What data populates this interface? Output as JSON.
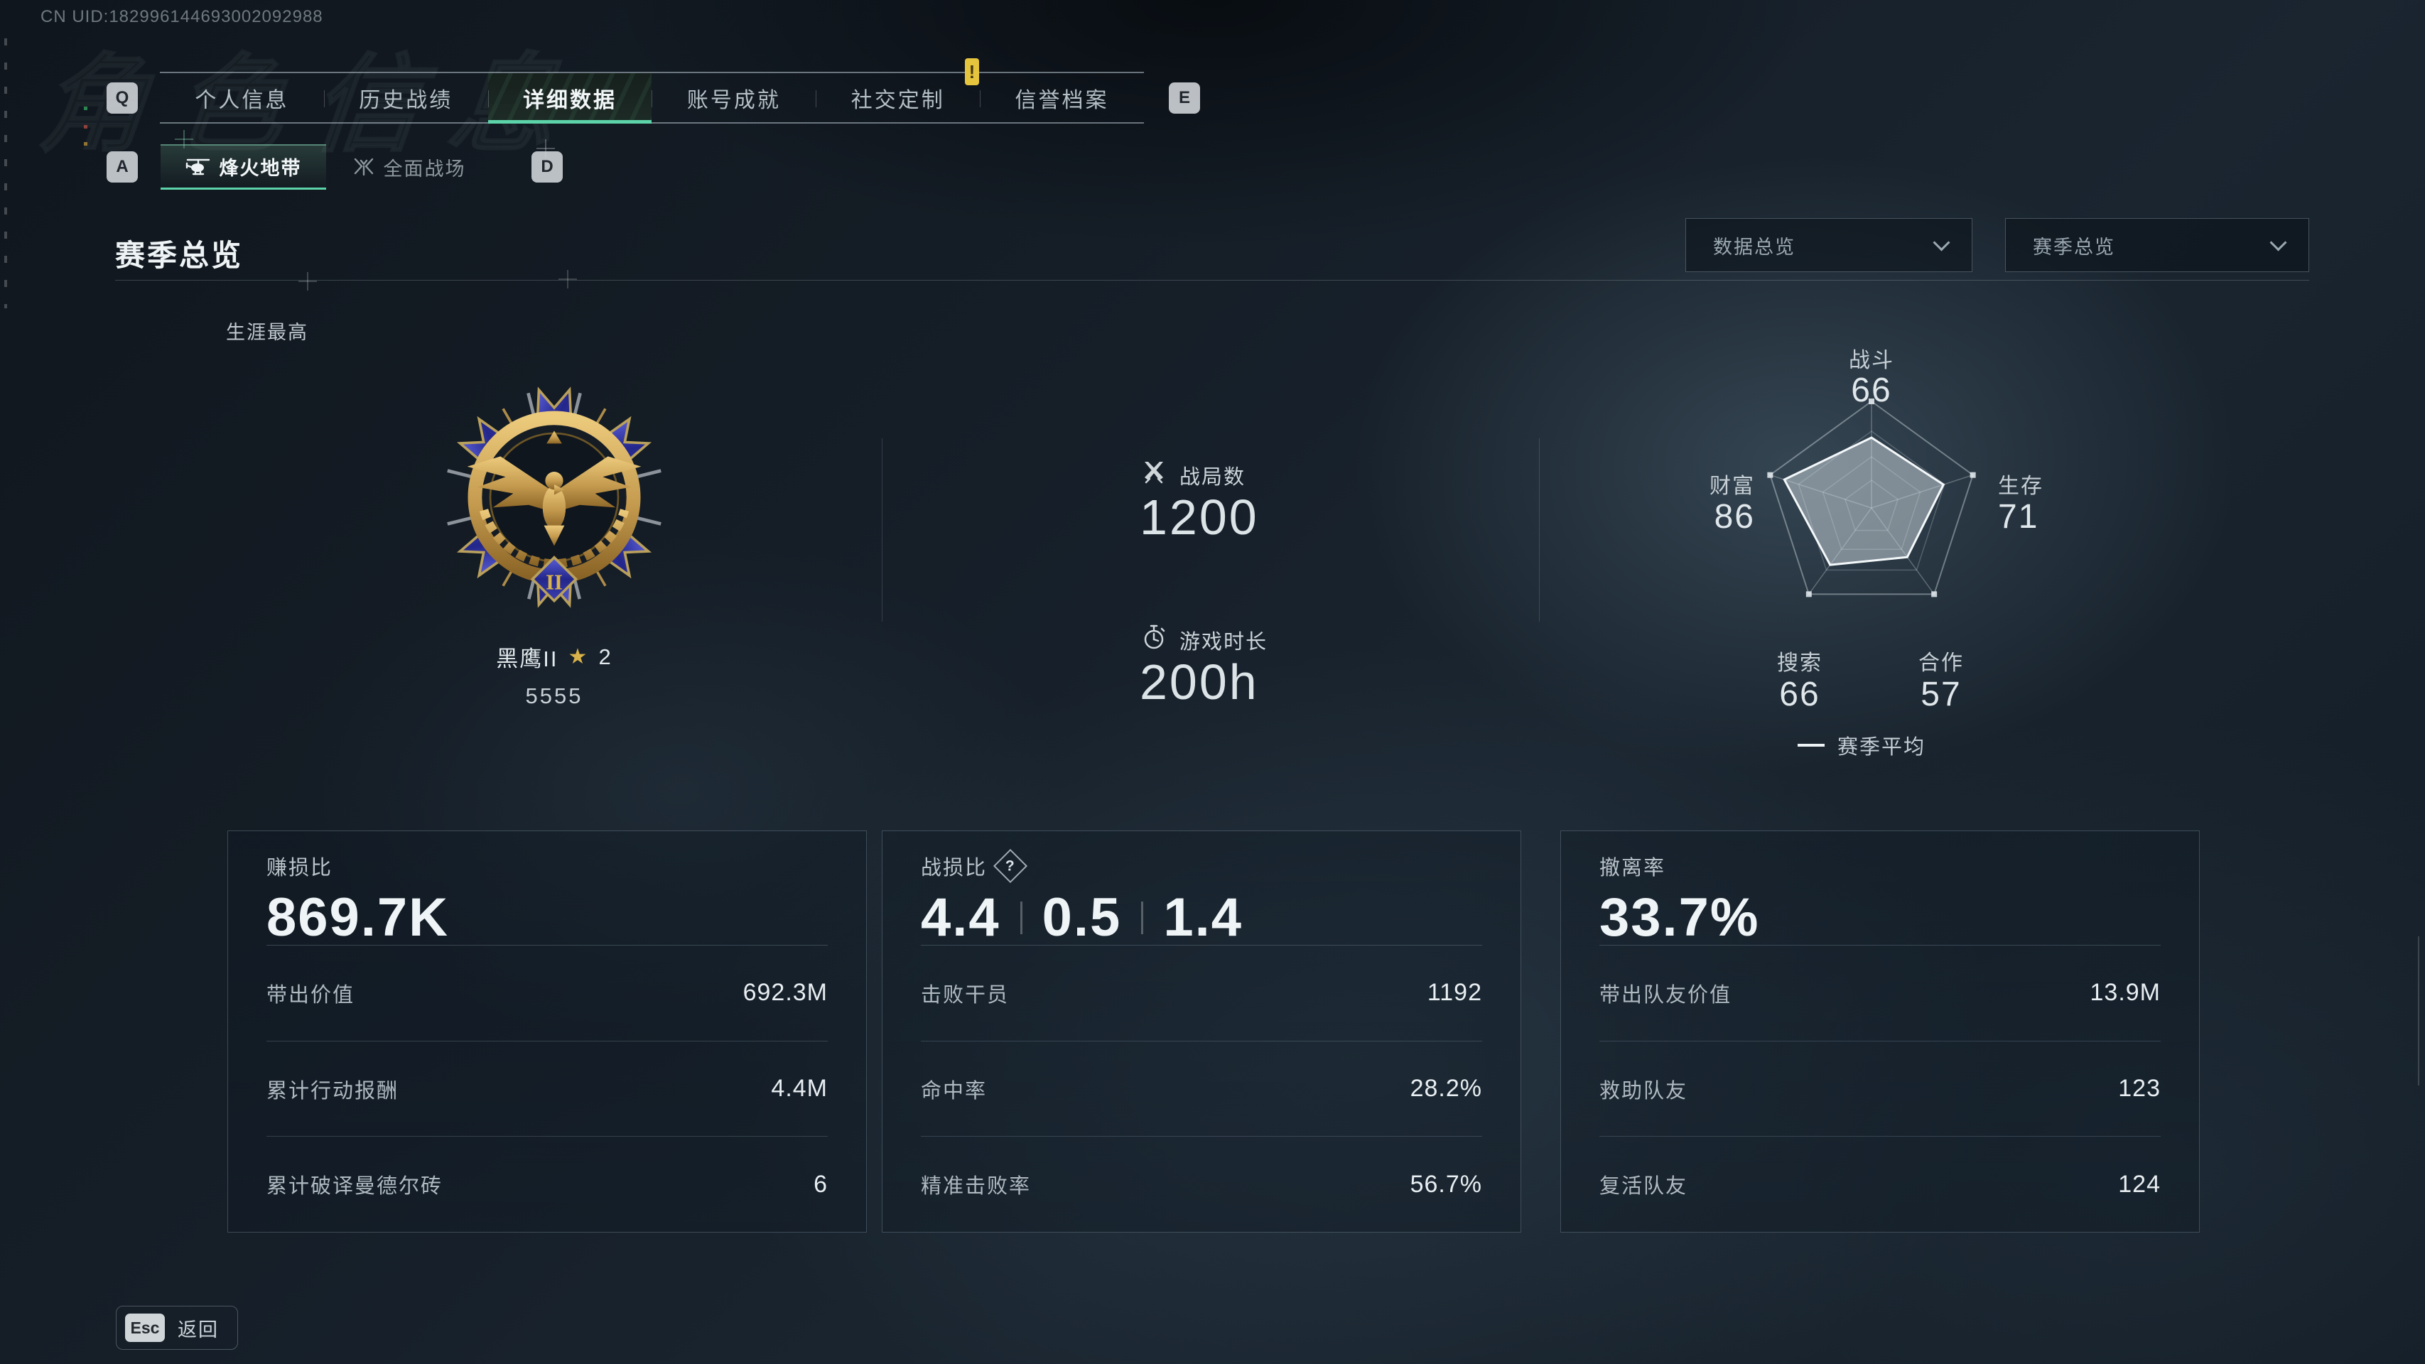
{
  "header": {
    "uid": "CN UID:182996144693002092988",
    "watermark": "角色信息"
  },
  "main_tabs": {
    "prev_key": "Q",
    "next_key": "E",
    "badge": "!",
    "items": [
      {
        "label": "个人信息"
      },
      {
        "label": "历史战绩"
      },
      {
        "label": "详细数据"
      },
      {
        "label": "账号成就"
      },
      {
        "label": "社交定制"
      },
      {
        "label": "信誉档案"
      }
    ]
  },
  "mode_tabs": {
    "prev_key": "A",
    "next_key": "D",
    "items": [
      {
        "label": "烽火地带"
      },
      {
        "label": "全面战场"
      }
    ]
  },
  "page": {
    "title": "赛季总览"
  },
  "filters": {
    "data_scope": "数据总览",
    "season_scope": "赛季总览"
  },
  "career": {
    "label": "生涯最高",
    "medal_name": "黑鹰II",
    "star_icon": "★",
    "star_count": "2",
    "score": "5555",
    "tier": "II"
  },
  "overview": {
    "matches": {
      "label": "战局数",
      "value": "1200"
    },
    "playtime": {
      "label": "游戏时长",
      "value": "200h"
    }
  },
  "radar": {
    "max": 100,
    "legend": "赛季平均",
    "axes": [
      {
        "label": "战斗",
        "value": 66
      },
      {
        "label": "生存",
        "value": 71
      },
      {
        "label": "合作",
        "value": 57
      },
      {
        "label": "搜索",
        "value": 66
      },
      {
        "label": "财富",
        "value": 86
      }
    ]
  },
  "cards": [
    {
      "title": "赚损比",
      "big_parts": [
        "869.7K"
      ],
      "rows": [
        {
          "label": "带出价值",
          "value": "692.3M"
        },
        {
          "label": "累计行动报酬",
          "value": "4.4M"
        },
        {
          "label": "累计破译曼德尔砖",
          "value": "6"
        }
      ]
    },
    {
      "title": "战损比",
      "help_icon": "?",
      "big_parts": [
        "4.4",
        "0.5",
        "1.4"
      ],
      "rows": [
        {
          "label": "击败干员",
          "value": "1192"
        },
        {
          "label": "命中率",
          "value": "28.2%"
        },
        {
          "label": "精准击败率",
          "value": "56.7%"
        }
      ]
    },
    {
      "title": "撤离率",
      "big_parts": [
        "33.7%"
      ],
      "rows": [
        {
          "label": "带出队友价值",
          "value": "13.9M"
        },
        {
          "label": "救助队友",
          "value": "123"
        },
        {
          "label": "复活队友",
          "value": "124"
        }
      ]
    }
  ],
  "footer": {
    "key": "Esc",
    "label": "返回"
  },
  "colors": {
    "accent_teal": "#5cd3a8",
    "badge_yellow": "#e6c53e",
    "gold": "#d8b24a"
  }
}
